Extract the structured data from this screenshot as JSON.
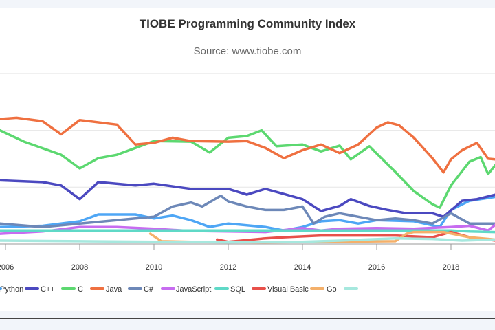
{
  "chart_data": {
    "type": "line",
    "title": "TIOBE Programming Community Index",
    "subtitle": "Source: www.tiobe.com",
    "xlim": [
      2005.85,
      2019.2
    ],
    "ylim": [
      0,
      30
    ],
    "y_gridlines": [
      10,
      20,
      30
    ],
    "x_ticks": [
      "2006",
      "2008",
      "2010",
      "2012",
      "2014",
      "2016",
      "2018"
    ],
    "x_tick_values": [
      2006,
      2008,
      2010,
      2012,
      2014,
      2016,
      2018
    ],
    "legend_placement": "bottom",
    "series": [
      {
        "name": "Python",
        "color": "#4ea6f5",
        "points": [
          [
            2005.85,
            3
          ],
          [
            2007,
            3.2
          ],
          [
            2008,
            4
          ],
          [
            2008.5,
            5.2
          ],
          [
            2009.5,
            5.2
          ],
          [
            2010,
            4.5
          ],
          [
            2010.5,
            5
          ],
          [
            2011,
            4.2
          ],
          [
            2011.5,
            3
          ],
          [
            2012,
            3.6
          ],
          [
            2013,
            3
          ],
          [
            2013.5,
            2.4
          ],
          [
            2014,
            3
          ],
          [
            2014.5,
            4
          ],
          [
            2015,
            4.2
          ],
          [
            2015.5,
            3.6
          ],
          [
            2016,
            4.2
          ],
          [
            2017,
            4
          ],
          [
            2017.7,
            3
          ],
          [
            2018,
            6
          ],
          [
            2018.5,
            7.6
          ],
          [
            2019,
            8.1
          ],
          [
            2019.2,
            8.3
          ]
        ]
      },
      {
        "name": "C++",
        "color": "#4b49c0",
        "points": [
          [
            2005.85,
            11.2
          ],
          [
            2007,
            10.9
          ],
          [
            2007.5,
            10.3
          ],
          [
            2008,
            7.9
          ],
          [
            2008.5,
            10.9
          ],
          [
            2009.5,
            10.3
          ],
          [
            2010,
            10.6
          ],
          [
            2011,
            9.7
          ],
          [
            2012,
            9.7
          ],
          [
            2012.5,
            8.7
          ],
          [
            2013,
            9.7
          ],
          [
            2013.5,
            8.8
          ],
          [
            2014,
            7.9
          ],
          [
            2014.5,
            5.8
          ],
          [
            2015,
            6.7
          ],
          [
            2015.3,
            7.9
          ],
          [
            2015.8,
            6.7
          ],
          [
            2016.3,
            6
          ],
          [
            2016.8,
            5.4
          ],
          [
            2017.5,
            5.4
          ],
          [
            2017.8,
            4.8
          ],
          [
            2018.3,
            7.6
          ],
          [
            2018.7,
            7.9
          ],
          [
            2019.2,
            8.7
          ]
        ]
      },
      {
        "name": "C",
        "color": "#5cd870",
        "points": [
          [
            2005.85,
            20
          ],
          [
            2006.5,
            18
          ],
          [
            2007.5,
            15.7
          ],
          [
            2008,
            13.3
          ],
          [
            2008.5,
            15.1
          ],
          [
            2009,
            15.7
          ],
          [
            2010,
            18.1
          ],
          [
            2011,
            18
          ],
          [
            2011.5,
            16.1
          ],
          [
            2012,
            18.7
          ],
          [
            2012.5,
            19
          ],
          [
            2012.9,
            20
          ],
          [
            2013.3,
            17.2
          ],
          [
            2014,
            17.5
          ],
          [
            2014.5,
            16.3
          ],
          [
            2015,
            17.3
          ],
          [
            2015.3,
            14.9
          ],
          [
            2015.8,
            17.2
          ],
          [
            2016.5,
            12.7
          ],
          [
            2017,
            9.3
          ],
          [
            2017.5,
            7
          ],
          [
            2017.7,
            6.4
          ],
          [
            2018,
            10.3
          ],
          [
            2018.5,
            14.5
          ],
          [
            2018.8,
            15.3
          ],
          [
            2019,
            12.3
          ],
          [
            2019.2,
            13.9
          ]
        ]
      },
      {
        "name": "Java",
        "color": "#ef7040",
        "points": [
          [
            2005.85,
            22
          ],
          [
            2006.3,
            22.2
          ],
          [
            2007,
            21.6
          ],
          [
            2007.5,
            19.3
          ],
          [
            2008,
            21.8
          ],
          [
            2009,
            21
          ],
          [
            2009.5,
            17.5
          ],
          [
            2010,
            17.8
          ],
          [
            2010.5,
            18.7
          ],
          [
            2011,
            18.1
          ],
          [
            2012,
            18
          ],
          [
            2012.5,
            18.1
          ],
          [
            2013,
            16.9
          ],
          [
            2013.5,
            15.1
          ],
          [
            2014,
            16.5
          ],
          [
            2014.5,
            17.5
          ],
          [
            2015,
            16
          ],
          [
            2015.5,
            17.5
          ],
          [
            2016,
            20.5
          ],
          [
            2016.3,
            21.4
          ],
          [
            2016.6,
            20.9
          ],
          [
            2017,
            18.7
          ],
          [
            2017.5,
            15.1
          ],
          [
            2017.8,
            12.6
          ],
          [
            2018,
            14.9
          ],
          [
            2018.3,
            16.5
          ],
          [
            2018.7,
            17.8
          ],
          [
            2019,
            15
          ],
          [
            2019.2,
            14.9
          ]
        ]
      },
      {
        "name": "C#",
        "color": "#6d88b8",
        "points": [
          [
            2005.85,
            3.6
          ],
          [
            2007,
            3
          ],
          [
            2008,
            3.6
          ],
          [
            2009,
            4.2
          ],
          [
            2010,
            4.8
          ],
          [
            2010.5,
            6.6
          ],
          [
            2011,
            7.3
          ],
          [
            2011.3,
            6.6
          ],
          [
            2011.8,
            8.5
          ],
          [
            2012,
            7.5
          ],
          [
            2012.5,
            6.6
          ],
          [
            2013,
            6
          ],
          [
            2013.5,
            6
          ],
          [
            2014,
            6.6
          ],
          [
            2014.3,
            3.6
          ],
          [
            2014.6,
            4.8
          ],
          [
            2015,
            5.4
          ],
          [
            2016,
            4.2
          ],
          [
            2016.5,
            4.5
          ],
          [
            2017,
            4.2
          ],
          [
            2017.5,
            3.6
          ],
          [
            2018,
            5.4
          ],
          [
            2018.5,
            3.6
          ],
          [
            2019.2,
            3.6
          ]
        ]
      },
      {
        "name": "JavaScript",
        "color": "#c76cf0",
        "points": [
          [
            2005.85,
            1.8
          ],
          [
            2007,
            2.2
          ],
          [
            2008,
            3
          ],
          [
            2009,
            3
          ],
          [
            2010,
            2.7
          ],
          [
            2011,
            2.3
          ],
          [
            2012,
            2.2
          ],
          [
            2013,
            2.1
          ],
          [
            2014,
            2.8
          ],
          [
            2014.5,
            2.4
          ],
          [
            2015,
            2.7
          ],
          [
            2016,
            2.8
          ],
          [
            2017,
            2.7
          ],
          [
            2018,
            3
          ],
          [
            2018.5,
            3.2
          ],
          [
            2019,
            2.4
          ],
          [
            2019.2,
            3.4
          ]
        ]
      },
      {
        "name": "SQL",
        "color": "#5fd9c7",
        "points": [
          [
            2005.85,
            2.4
          ],
          [
            2018,
            2.4
          ],
          [
            2018.5,
            2.2
          ],
          [
            2019.2,
            2.1
          ]
        ]
      },
      {
        "name": "Visual Basic",
        "color": "#e8504a",
        "points": [
          [
            2011.7,
            0.8
          ],
          [
            2012,
            0.4
          ],
          [
            2013,
            1
          ],
          [
            2013.5,
            1.2
          ],
          [
            2014.5,
            1.5
          ],
          [
            2015.5,
            1.5
          ],
          [
            2016.5,
            1.5
          ],
          [
            2017.5,
            1.2
          ],
          [
            2018,
            2.1
          ],
          [
            2018.5,
            1.2
          ],
          [
            2019.2,
            0.6
          ]
        ]
      },
      {
        "name": "Go",
        "color": "#f4b06a",
        "points": [
          [
            2009.9,
            1.8
          ],
          [
            2010.2,
            0.5
          ],
          [
            2011,
            0.4
          ],
          [
            2013,
            0.3
          ],
          [
            2015,
            0.4
          ],
          [
            2016.5,
            0.5
          ],
          [
            2016.8,
            1.8
          ],
          [
            2017,
            2.1
          ],
          [
            2017.8,
            2.1
          ],
          [
            2018.5,
            1.2
          ],
          [
            2019.2,
            0.8
          ]
        ]
      },
      {
        "name": "",
        "color": "#a6e8de",
        "points": [
          [
            2005.85,
            0.6
          ],
          [
            2008,
            0.5
          ],
          [
            2010,
            0.4
          ],
          [
            2012,
            0.3
          ],
          [
            2014,
            0.4
          ],
          [
            2015,
            0.6
          ],
          [
            2016.5,
            1
          ],
          [
            2017.5,
            0.9
          ],
          [
            2018.3,
            0.6
          ],
          [
            2019.2,
            0.8
          ]
        ]
      }
    ]
  }
}
